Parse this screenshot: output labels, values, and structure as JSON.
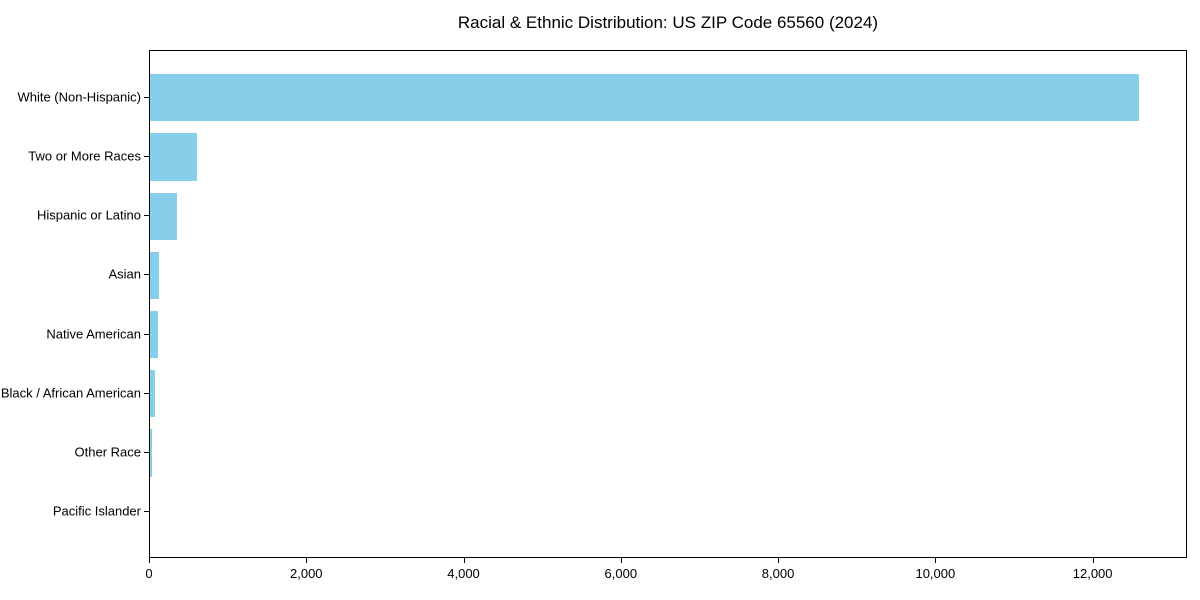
{
  "chart_data": {
    "type": "bar",
    "orientation": "horizontal",
    "title": "Racial & Ethnic Distribution: US ZIP Code 65560 (2024)",
    "categories": [
      "White (Non-Hispanic)",
      "Two or More Races",
      "Hispanic or Latino",
      "Asian",
      "Native American",
      "Black / African American",
      "Other Race",
      "Pacific Islander"
    ],
    "values": [
      12573,
      600,
      340,
      115,
      100,
      62,
      30,
      0
    ],
    "xlabel": "",
    "ylabel": "",
    "xlim": [
      0,
      13200
    ],
    "x_ticks": [
      0,
      2000,
      4000,
      6000,
      8000,
      10000,
      12000
    ],
    "x_tick_labels": [
      "0",
      "2,000",
      "4,000",
      "6,000",
      "8,000",
      "10,000",
      "12,000"
    ],
    "bar_color": "#87CEEB",
    "axis_color": "#000000",
    "text_color": "#000000",
    "grid": false
  }
}
